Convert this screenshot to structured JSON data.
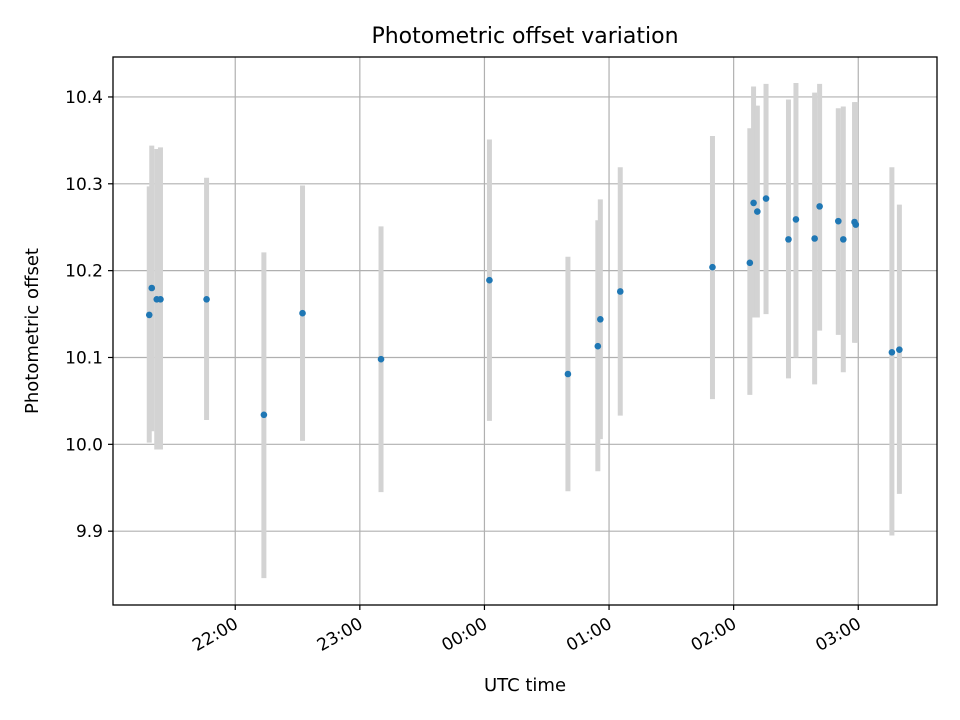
{
  "chart_data": {
    "type": "scatter",
    "title": "Photometric offset variation",
    "xlabel": "UTC time",
    "ylabel": "Photometric offset",
    "x_unit": "UTC time (hours from 00:00)",
    "xlim": [
      -2.981,
      3.632
    ],
    "ylim": [
      9.815,
      10.446
    ],
    "x_ticks": [
      {
        "value": -2,
        "label": "22:00"
      },
      {
        "value": -1,
        "label": "23:00"
      },
      {
        "value": 0,
        "label": "00:00"
      },
      {
        "value": 1,
        "label": "01:00"
      },
      {
        "value": 2,
        "label": "02:00"
      },
      {
        "value": 3,
        "label": "03:00"
      }
    ],
    "y_ticks": [
      {
        "value": 9.9,
        "label": "9.9"
      },
      {
        "value": 10.0,
        "label": "10.0"
      },
      {
        "value": 10.1,
        "label": "10.1"
      },
      {
        "value": 10.2,
        "label": "10.2"
      },
      {
        "value": 10.3,
        "label": "10.3"
      },
      {
        "value": 10.4,
        "label": "10.4"
      }
    ],
    "grid": true,
    "error_bars": true,
    "points": [
      {
        "x": -2.69,
        "y": 10.149,
        "err_low": 10.002,
        "err_high": 10.297
      },
      {
        "x": -2.67,
        "y": 10.18,
        "err_low": 10.015,
        "err_high": 10.344
      },
      {
        "x": -2.63,
        "y": 10.167,
        "err_low": 9.994,
        "err_high": 10.34
      },
      {
        "x": -2.6,
        "y": 10.167,
        "err_low": 9.994,
        "err_high": 10.342
      },
      {
        "x": -2.23,
        "y": 10.167,
        "err_low": 10.028,
        "err_high": 10.307
      },
      {
        "x": -1.77,
        "y": 10.034,
        "err_low": 9.846,
        "err_high": 10.221
      },
      {
        "x": -1.46,
        "y": 10.151,
        "err_low": 10.004,
        "err_high": 10.298
      },
      {
        "x": -0.83,
        "y": 10.098,
        "err_low": 9.945,
        "err_high": 10.251
      },
      {
        "x": 0.04,
        "y": 10.189,
        "err_low": 10.027,
        "err_high": 10.351
      },
      {
        "x": 0.67,
        "y": 10.081,
        "err_low": 9.946,
        "err_high": 10.216
      },
      {
        "x": 0.91,
        "y": 10.113,
        "err_low": 9.969,
        "err_high": 10.258
      },
      {
        "x": 0.93,
        "y": 10.144,
        "err_low": 10.006,
        "err_high": 10.282
      },
      {
        "x": 1.09,
        "y": 10.176,
        "err_low": 10.033,
        "err_high": 10.319
      },
      {
        "x": 1.83,
        "y": 10.204,
        "err_low": 10.052,
        "err_high": 10.355
      },
      {
        "x": 2.13,
        "y": 10.209,
        "err_low": 10.057,
        "err_high": 10.364
      },
      {
        "x": 2.16,
        "y": 10.278,
        "err_low": 10.146,
        "err_high": 10.412
      },
      {
        "x": 2.19,
        "y": 10.268,
        "err_low": 10.146,
        "err_high": 10.39
      },
      {
        "x": 2.26,
        "y": 10.283,
        "err_low": 10.15,
        "err_high": 10.415
      },
      {
        "x": 2.44,
        "y": 10.236,
        "err_low": 10.076,
        "err_high": 10.397
      },
      {
        "x": 2.5,
        "y": 10.259,
        "err_low": 10.1,
        "err_high": 10.416
      },
      {
        "x": 2.65,
        "y": 10.237,
        "err_low": 10.069,
        "err_high": 10.405
      },
      {
        "x": 2.69,
        "y": 10.274,
        "err_low": 10.131,
        "err_high": 10.415
      },
      {
        "x": 2.84,
        "y": 10.257,
        "err_low": 10.126,
        "err_high": 10.387
      },
      {
        "x": 2.88,
        "y": 10.236,
        "err_low": 10.083,
        "err_high": 10.389
      },
      {
        "x": 2.97,
        "y": 10.256,
        "err_low": 10.117,
        "err_high": 10.394
      },
      {
        "x": 2.98,
        "y": 10.253,
        "err_low": 10.117,
        "err_high": 10.394
      },
      {
        "x": 3.27,
        "y": 10.106,
        "err_low": 9.895,
        "err_high": 10.319
      },
      {
        "x": 3.33,
        "y": 10.109,
        "err_low": 9.943,
        "err_high": 10.276
      }
    ],
    "colors": {
      "point": "#1f77b4",
      "error_bar": "#d3d3d3",
      "grid": "#b0b0b0"
    }
  }
}
